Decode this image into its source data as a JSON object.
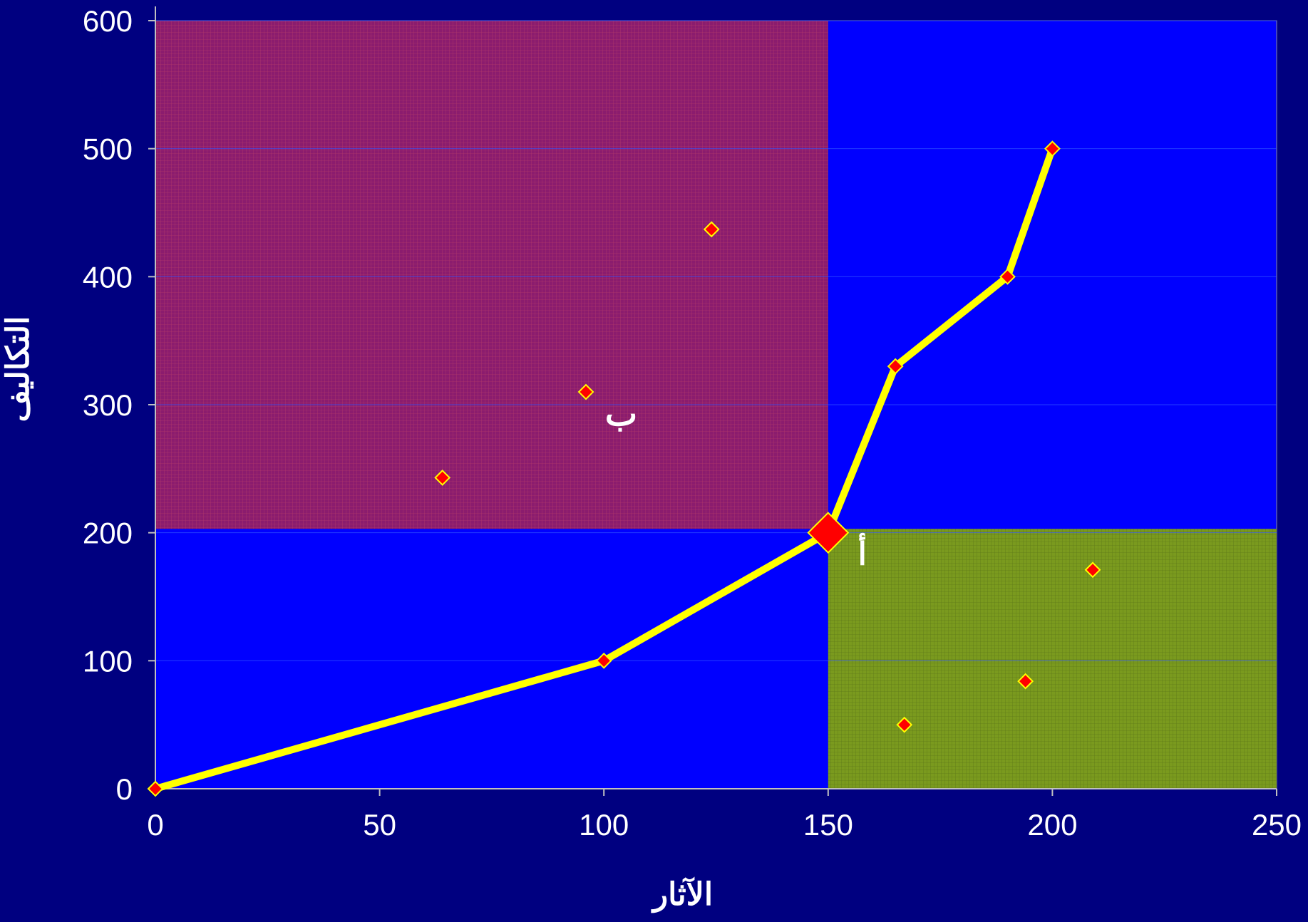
{
  "colors": {
    "background": "#000080",
    "plot_area": "#0000FF",
    "region_b": "#8B1C6E",
    "region_a": "#7A9A1E",
    "curve": "#FFFF00",
    "marker_fill": "#FF0000",
    "marker_stroke": "#FFFF00",
    "text": "#FFFFFF",
    "gridline": "#3355FF"
  },
  "chart_data": {
    "type": "scatter",
    "title": "",
    "xlabel": "الآثار",
    "ylabel": "التكاليف",
    "xlim": [
      0,
      250
    ],
    "ylim": [
      0,
      600
    ],
    "x_ticks": [
      0,
      50,
      100,
      150,
      200,
      250
    ],
    "y_ticks": [
      0,
      100,
      200,
      300,
      400,
      500,
      600
    ],
    "grid": {
      "horizontal": true,
      "vertical": false
    },
    "legend": "none",
    "regions": [
      {
        "label": "ب",
        "x_range": [
          0,
          150
        ],
        "y_range": [
          203,
          600
        ],
        "color": "#8B1C6E",
        "pattern": "crosshatch"
      },
      {
        "label": "",
        "x_range": [
          150,
          250
        ],
        "y_range": [
          0,
          203
        ],
        "color": "#7A9A1E",
        "pattern": "crosshatch"
      }
    ],
    "series": [
      {
        "kind": "line",
        "points": [
          [
            0,
            0
          ],
          [
            100,
            100
          ],
          [
            150,
            200
          ],
          [
            165,
            330
          ],
          [
            190,
            400
          ],
          [
            200,
            500
          ]
        ]
      },
      {
        "kind": "points",
        "points": [
          [
            64,
            243
          ],
          [
            96,
            310
          ],
          [
            124,
            437
          ],
          [
            167,
            50
          ],
          [
            194,
            84
          ],
          [
            209,
            171
          ]
        ]
      }
    ],
    "highlight_point": {
      "x": 150,
      "y": 200,
      "label": "أ"
    },
    "annotations": [
      {
        "text": "ب",
        "x": 101,
        "y": 296
      }
    ]
  }
}
